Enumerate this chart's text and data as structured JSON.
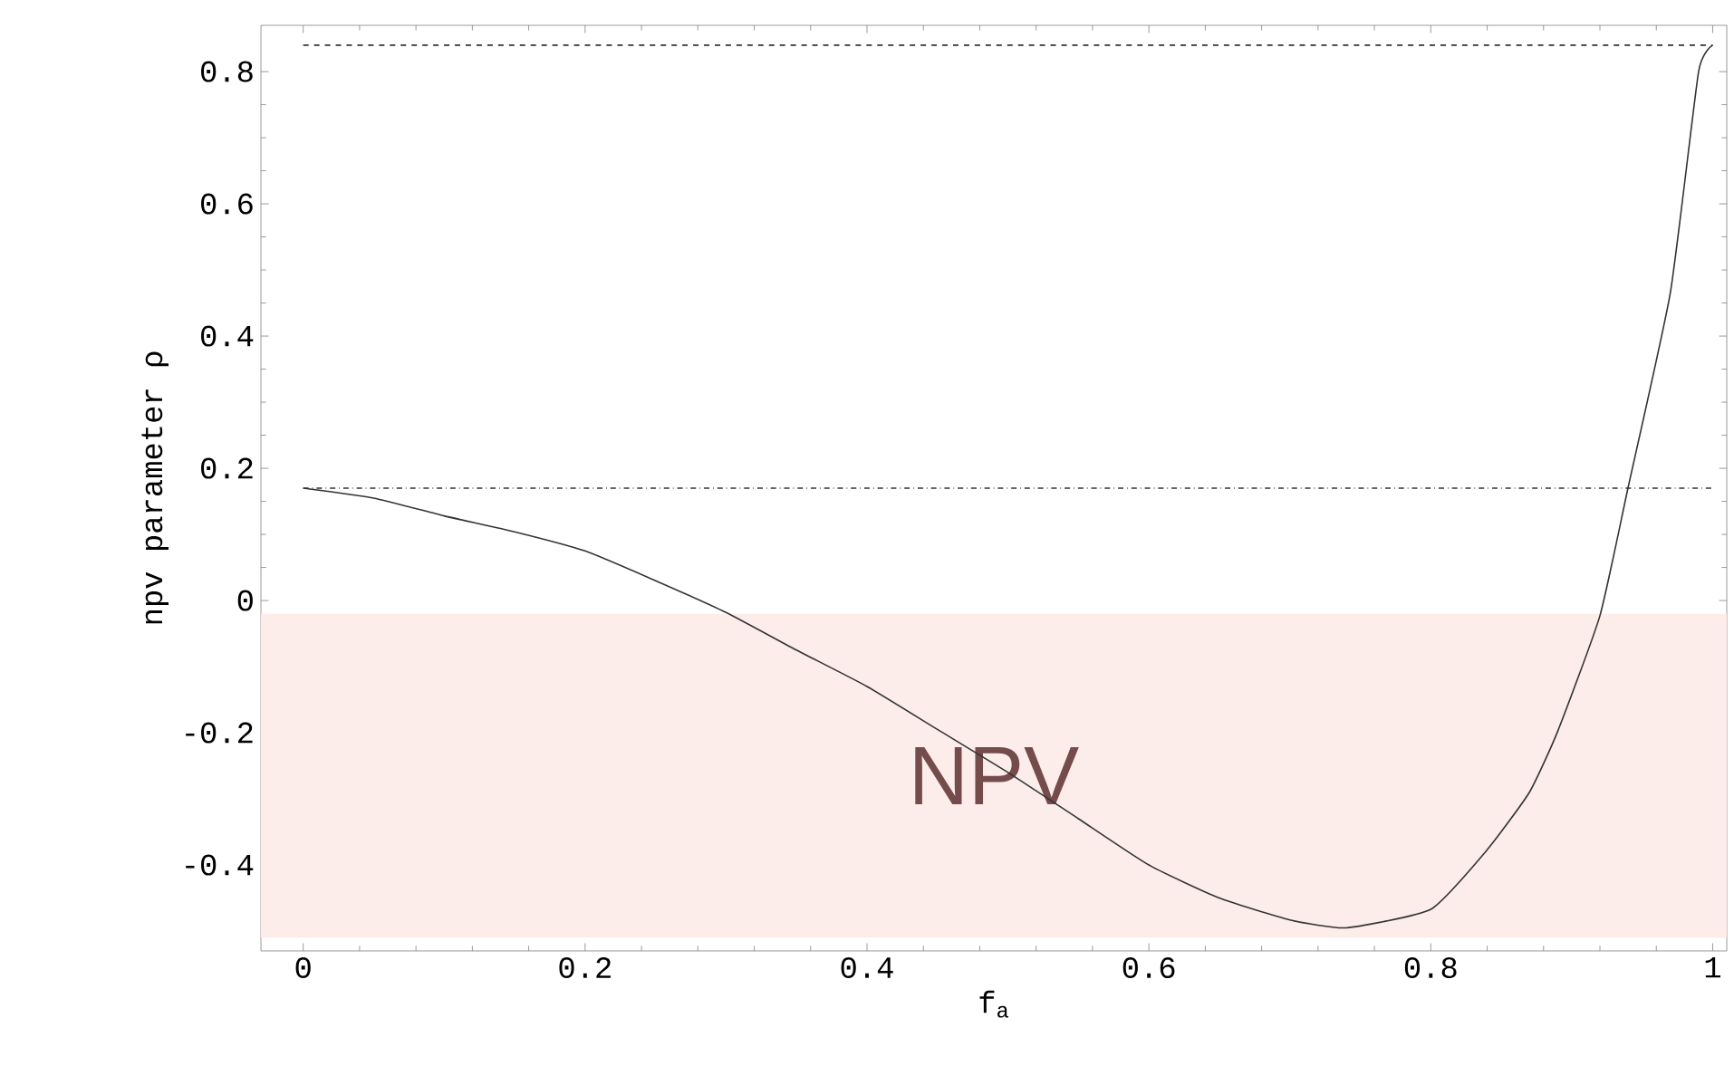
{
  "chart_data": {
    "type": "line",
    "xlabel": "f$_{a}$",
    "ylabel": "npv parameter  ρ",
    "x": [
      0,
      0.05,
      0.1,
      0.15,
      0.2,
      0.25,
      0.3,
      0.35,
      0.4,
      0.45,
      0.5,
      0.55,
      0.6,
      0.65,
      0.7,
      0.74,
      0.8,
      0.84,
      0.87,
      0.89,
      0.92,
      0.94,
      0.97,
      0.99,
      1
    ],
    "series": [
      {
        "color": "#333333",
        "values": [
          0.17,
          0.155,
          0.128,
          0.104,
          0.075,
          0.03,
          -0.018,
          -0.075,
          -0.13,
          -0.195,
          -0.26,
          -0.33,
          -0.4,
          -0.45,
          -0.483,
          -0.495,
          -0.467,
          -0.377,
          -0.29,
          -0.198,
          -0.023,
          0.171,
          0.466,
          0.8,
          0.84
        ]
      }
    ],
    "xlim": [
      -0.03,
      1.01
    ],
    "ylim": [
      -0.53,
      0.87
    ],
    "xticks": [
      0,
      0.2,
      0.4,
      0.6,
      0.8,
      1
    ],
    "yticks": [
      -0.4,
      -0.2,
      0,
      0.2,
      0.4,
      0.6,
      0.8
    ],
    "ref_lines": [
      {
        "axis": "y",
        "value": 0.84,
        "line_style": "dashed",
        "color": "#333333"
      },
      {
        "axis": "y",
        "value": 0.17,
        "line_style": "dashdot",
        "color": "#333333"
      }
    ],
    "bands": [
      {
        "axis": "y",
        "from": -0.51,
        "to": -0.02,
        "label": "NPV",
        "color": "#fcecea"
      }
    ],
    "line_style": "solid",
    "marker": "none"
  }
}
